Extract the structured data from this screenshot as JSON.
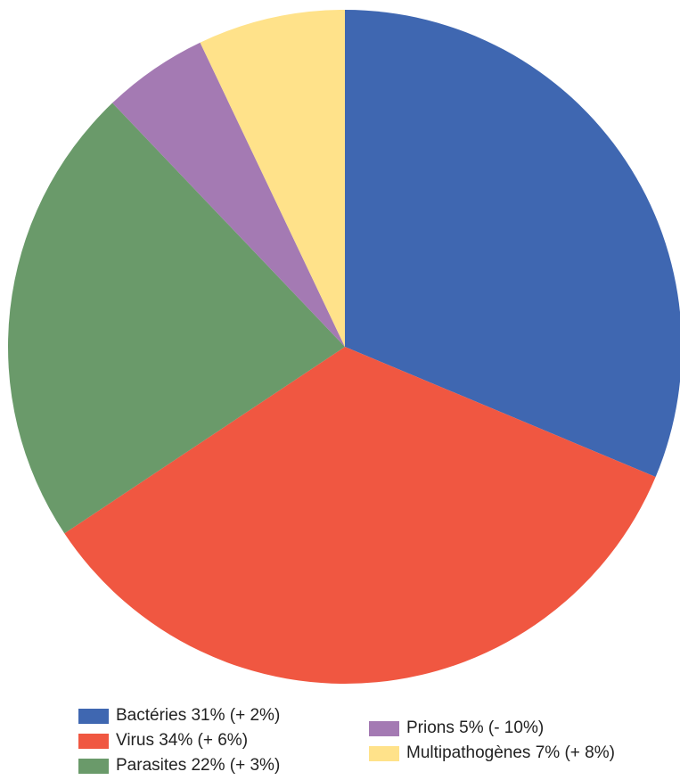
{
  "chart_data": {
    "type": "pie",
    "title": "",
    "series": [
      {
        "label": "Bactéries 31% (+ 2%)",
        "value": 31,
        "color": "#3f67b1"
      },
      {
        "label": "Virus 34% (+ 6%)",
        "value": 34,
        "color": "#f05741"
      },
      {
        "label": "Parasites 22% (+ 3%)",
        "value": 22,
        "color": "#6a9a6a"
      },
      {
        "label": "Prions 5% (- 10%)",
        "value": 5,
        "color": "#a47ab3"
      },
      {
        "label": "Multipathogènes 7% (+ 8%)",
        "value": 7,
        "color": "#ffe28a"
      }
    ],
    "legend": "bottom"
  }
}
